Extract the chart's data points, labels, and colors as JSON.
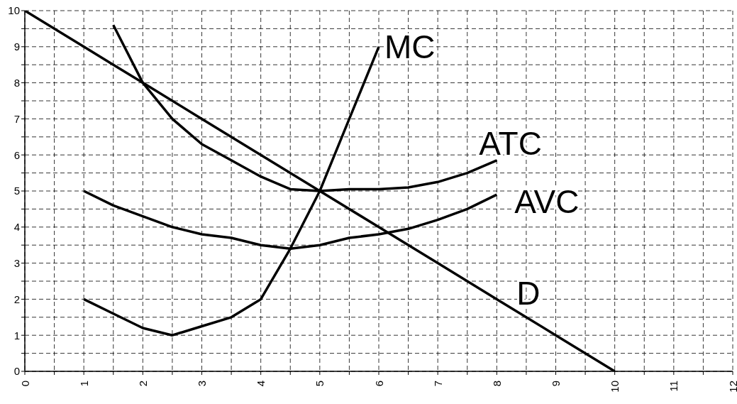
{
  "chart_data": {
    "type": "line",
    "xlim": [
      0,
      12
    ],
    "ylim": [
      0,
      10
    ],
    "xticks": [
      0,
      {
        "value": 0.5,
        "label": null
      },
      1,
      {
        "value": 1.5,
        "label": null
      },
      2,
      {
        "value": 2.5,
        "label": null
      },
      3,
      {
        "value": 3.5,
        "label": null
      },
      4,
      {
        "value": 4.5,
        "label": null
      },
      5,
      {
        "value": 5.5,
        "label": null
      },
      6,
      {
        "value": 6.5,
        "label": null
      },
      7,
      {
        "value": 7.5,
        "label": null
      },
      8,
      {
        "value": 8.5,
        "label": null
      },
      9,
      {
        "value": 9.5,
        "label": null
      },
      10,
      {
        "value": 10.5,
        "label": null
      },
      11,
      {
        "value": 11.5,
        "label": null
      },
      12
    ],
    "yticks": [
      0,
      {
        "value": 0.5,
        "label": null
      },
      1,
      {
        "value": 1.5,
        "label": null
      },
      2,
      {
        "value": 2.5,
        "label": null
      },
      3,
      {
        "value": 3.5,
        "label": null
      },
      4,
      {
        "value": 4.5,
        "label": null
      },
      5,
      {
        "value": 5.5,
        "label": null
      },
      6,
      {
        "value": 6.5,
        "label": null
      },
      7,
      {
        "value": 7.5,
        "label": null
      },
      8,
      {
        "value": 8.5,
        "label": null
      },
      9,
      {
        "value": 9.5,
        "label": null
      },
      10
    ],
    "grid": true,
    "marker": "none",
    "line_style": "solid",
    "series": [
      {
        "name": "MC",
        "color": "#000000",
        "x": [
          1,
          1.5,
          2,
          2.5,
          3,
          3.5,
          4,
          4.5,
          5,
          5.5,
          6
        ],
        "values": [
          2,
          1.6,
          1.2,
          1,
          1.25,
          1.5,
          2,
          3.4,
          5,
          7,
          9
        ]
      },
      {
        "name": "ATC",
        "color": "#000000",
        "x": [
          1.5,
          2,
          2.5,
          3,
          3.5,
          4,
          4.5,
          5,
          5.5,
          6,
          6.5,
          7,
          7.5,
          8
        ],
        "values": [
          9.6,
          8,
          7,
          6.3,
          5.85,
          5.4,
          5.05,
          5,
          5.05,
          5.05,
          5.1,
          5.25,
          5.5,
          5.85
        ]
      },
      {
        "name": "AVC",
        "color": "#000000",
        "x": [
          1,
          1.5,
          2,
          2.5,
          3,
          3.5,
          4,
          4.5,
          5,
          5.5,
          6,
          6.5,
          7,
          7.5,
          8
        ],
        "values": [
          5,
          4.6,
          4.3,
          4,
          3.8,
          3.7,
          3.5,
          3.4,
          3.5,
          3.7,
          3.8,
          3.95,
          4.2,
          4.5,
          4.9
        ]
      },
      {
        "name": "D",
        "color": "#000000",
        "x": [
          0,
          1,
          1.5,
          2,
          3,
          4,
          5,
          6,
          7,
          8,
          9,
          10
        ],
        "values": [
          10,
          9,
          8.5,
          8,
          7,
          6,
          5,
          4,
          3,
          2,
          1,
          0
        ]
      }
    ]
  }
}
